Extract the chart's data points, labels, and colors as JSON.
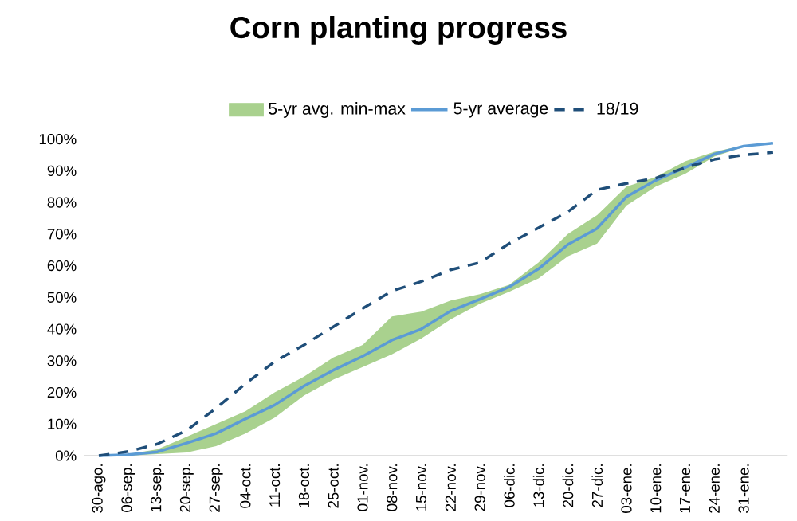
{
  "chart_data": {
    "type": "line",
    "title": "Corn planting progress",
    "categories": [
      "30-ago.",
      "06-sep.",
      "13-sep.",
      "20-sep.",
      "27-sep.",
      "04-oct.",
      "11-oct.",
      "18-oct.",
      "25-oct.",
      "01-nov.",
      "08-nov.",
      "15-nov.",
      "22-nov.",
      "29-nov.",
      "06-dic.",
      "13-dic.",
      "20-dic.",
      "27-dic.",
      "03-ene.",
      "10-ene.",
      "17-ene.",
      "24-ene.",
      "31-ene.",
      null
    ],
    "series": [
      {
        "name": "5-yr average",
        "color": "#5b9bd5",
        "line_style": "solid",
        "values": [
          0,
          0.3,
          1.2,
          4,
          7,
          11.6,
          16,
          22,
          27,
          31.4,
          36.5,
          40,
          45.7,
          49.4,
          53.3,
          59,
          66.7,
          71.8,
          81.8,
          87,
          91,
          95.3,
          97.8,
          98.7
        ],
        "lower": [
          0,
          0,
          0.5,
          1,
          3,
          7,
          12,
          19,
          24,
          28,
          32,
          37,
          43,
          48,
          51.8,
          56,
          63,
          67,
          79,
          85,
          89,
          94.5,
          97.5,
          98.5
        ],
        "upper": [
          0,
          0.5,
          2,
          6,
          10,
          14,
          20,
          25,
          31,
          35,
          44,
          45.5,
          49,
          51,
          54,
          61,
          70,
          76,
          85,
          88,
          93,
          96,
          98,
          98.8
        ]
      },
      {
        "name": "18/19",
        "color": "#1f4e79",
        "line_style": "dashed",
        "values": [
          0,
          1.3,
          3.7,
          8,
          15,
          22.7,
          29.7,
          35,
          40.7,
          46.5,
          52,
          55,
          58.7,
          61,
          67,
          72,
          77,
          84,
          86,
          87.7,
          91,
          93.6,
          95,
          95.8
        ]
      }
    ],
    "annotations": [
      "5-yr avg. min-max"
    ],
    "ylim": [
      0,
      100
    ],
    "yticks": [
      {
        "value": 0,
        "label": "0%"
      },
      {
        "value": 10,
        "label": "10%"
      },
      {
        "value": 20,
        "label": "20%"
      },
      {
        "value": 30,
        "label": "30%"
      },
      {
        "value": 40,
        "label": "40%"
      },
      {
        "value": 50,
        "label": "50%"
      },
      {
        "value": 60,
        "label": "60%"
      },
      {
        "value": 70,
        "label": "70%"
      },
      {
        "value": 80,
        "label": "80%"
      },
      {
        "value": 90,
        "label": "90%"
      },
      {
        "value": 100,
        "label": "100%"
      }
    ],
    "legend": "top"
  }
}
